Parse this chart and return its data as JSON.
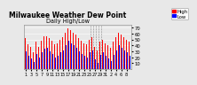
{
  "title": "Milwaukee Weather Dew Point",
  "subtitle": "Daily High/Low",
  "background_color": "#e8e8e8",
  "plot_bg": "#e8e8e8",
  "bar_width": 0.35,
  "legend_high_color": "#ff0000",
  "legend_low_color": "#0000ff",
  "legend_high_label": "High",
  "legend_low_label": "Low",
  "yticks": [
    10,
    20,
    30,
    40,
    50,
    60,
    70
  ],
  "ylim": [
    0,
    75
  ],
  "dashed_vlines_x": [
    24.5,
    25.5,
    26.5,
    27.5,
    28.5
  ],
  "highs": [
    52,
    42,
    38,
    28,
    46,
    38,
    48,
    55,
    56,
    52,
    48,
    42,
    44,
    50,
    54,
    62,
    68,
    65,
    62,
    58,
    52,
    48,
    44,
    42,
    50,
    54,
    38,
    32,
    46,
    50,
    44,
    40,
    36,
    46,
    54,
    62,
    58,
    54,
    50,
    46
  ],
  "lows": [
    30,
    22,
    18,
    12,
    26,
    20,
    28,
    35,
    36,
    30,
    26,
    20,
    22,
    28,
    32,
    40,
    48,
    44,
    40,
    36,
    30,
    26,
    22,
    20,
    28,
    32,
    16,
    10,
    24,
    28,
    22,
    18,
    14,
    24,
    32,
    40,
    36,
    32,
    28,
    22
  ],
  "x_tick_positions": [
    0,
    2,
    4,
    6,
    8,
    10,
    12,
    14,
    16,
    18,
    20,
    22,
    24,
    26,
    28,
    30,
    32,
    34,
    36,
    38
  ],
  "x_tick_labels": [
    "1",
    "3",
    "5",
    "7",
    "9",
    "11",
    "13",
    "15",
    "17",
    "19",
    "21",
    "23",
    "25",
    "27",
    "29",
    "31",
    "2",
    "4",
    "6",
    "8"
  ],
  "title_fontsize": 5.5,
  "axis_fontsize": 3.8,
  "legend_fontsize": 3.8
}
